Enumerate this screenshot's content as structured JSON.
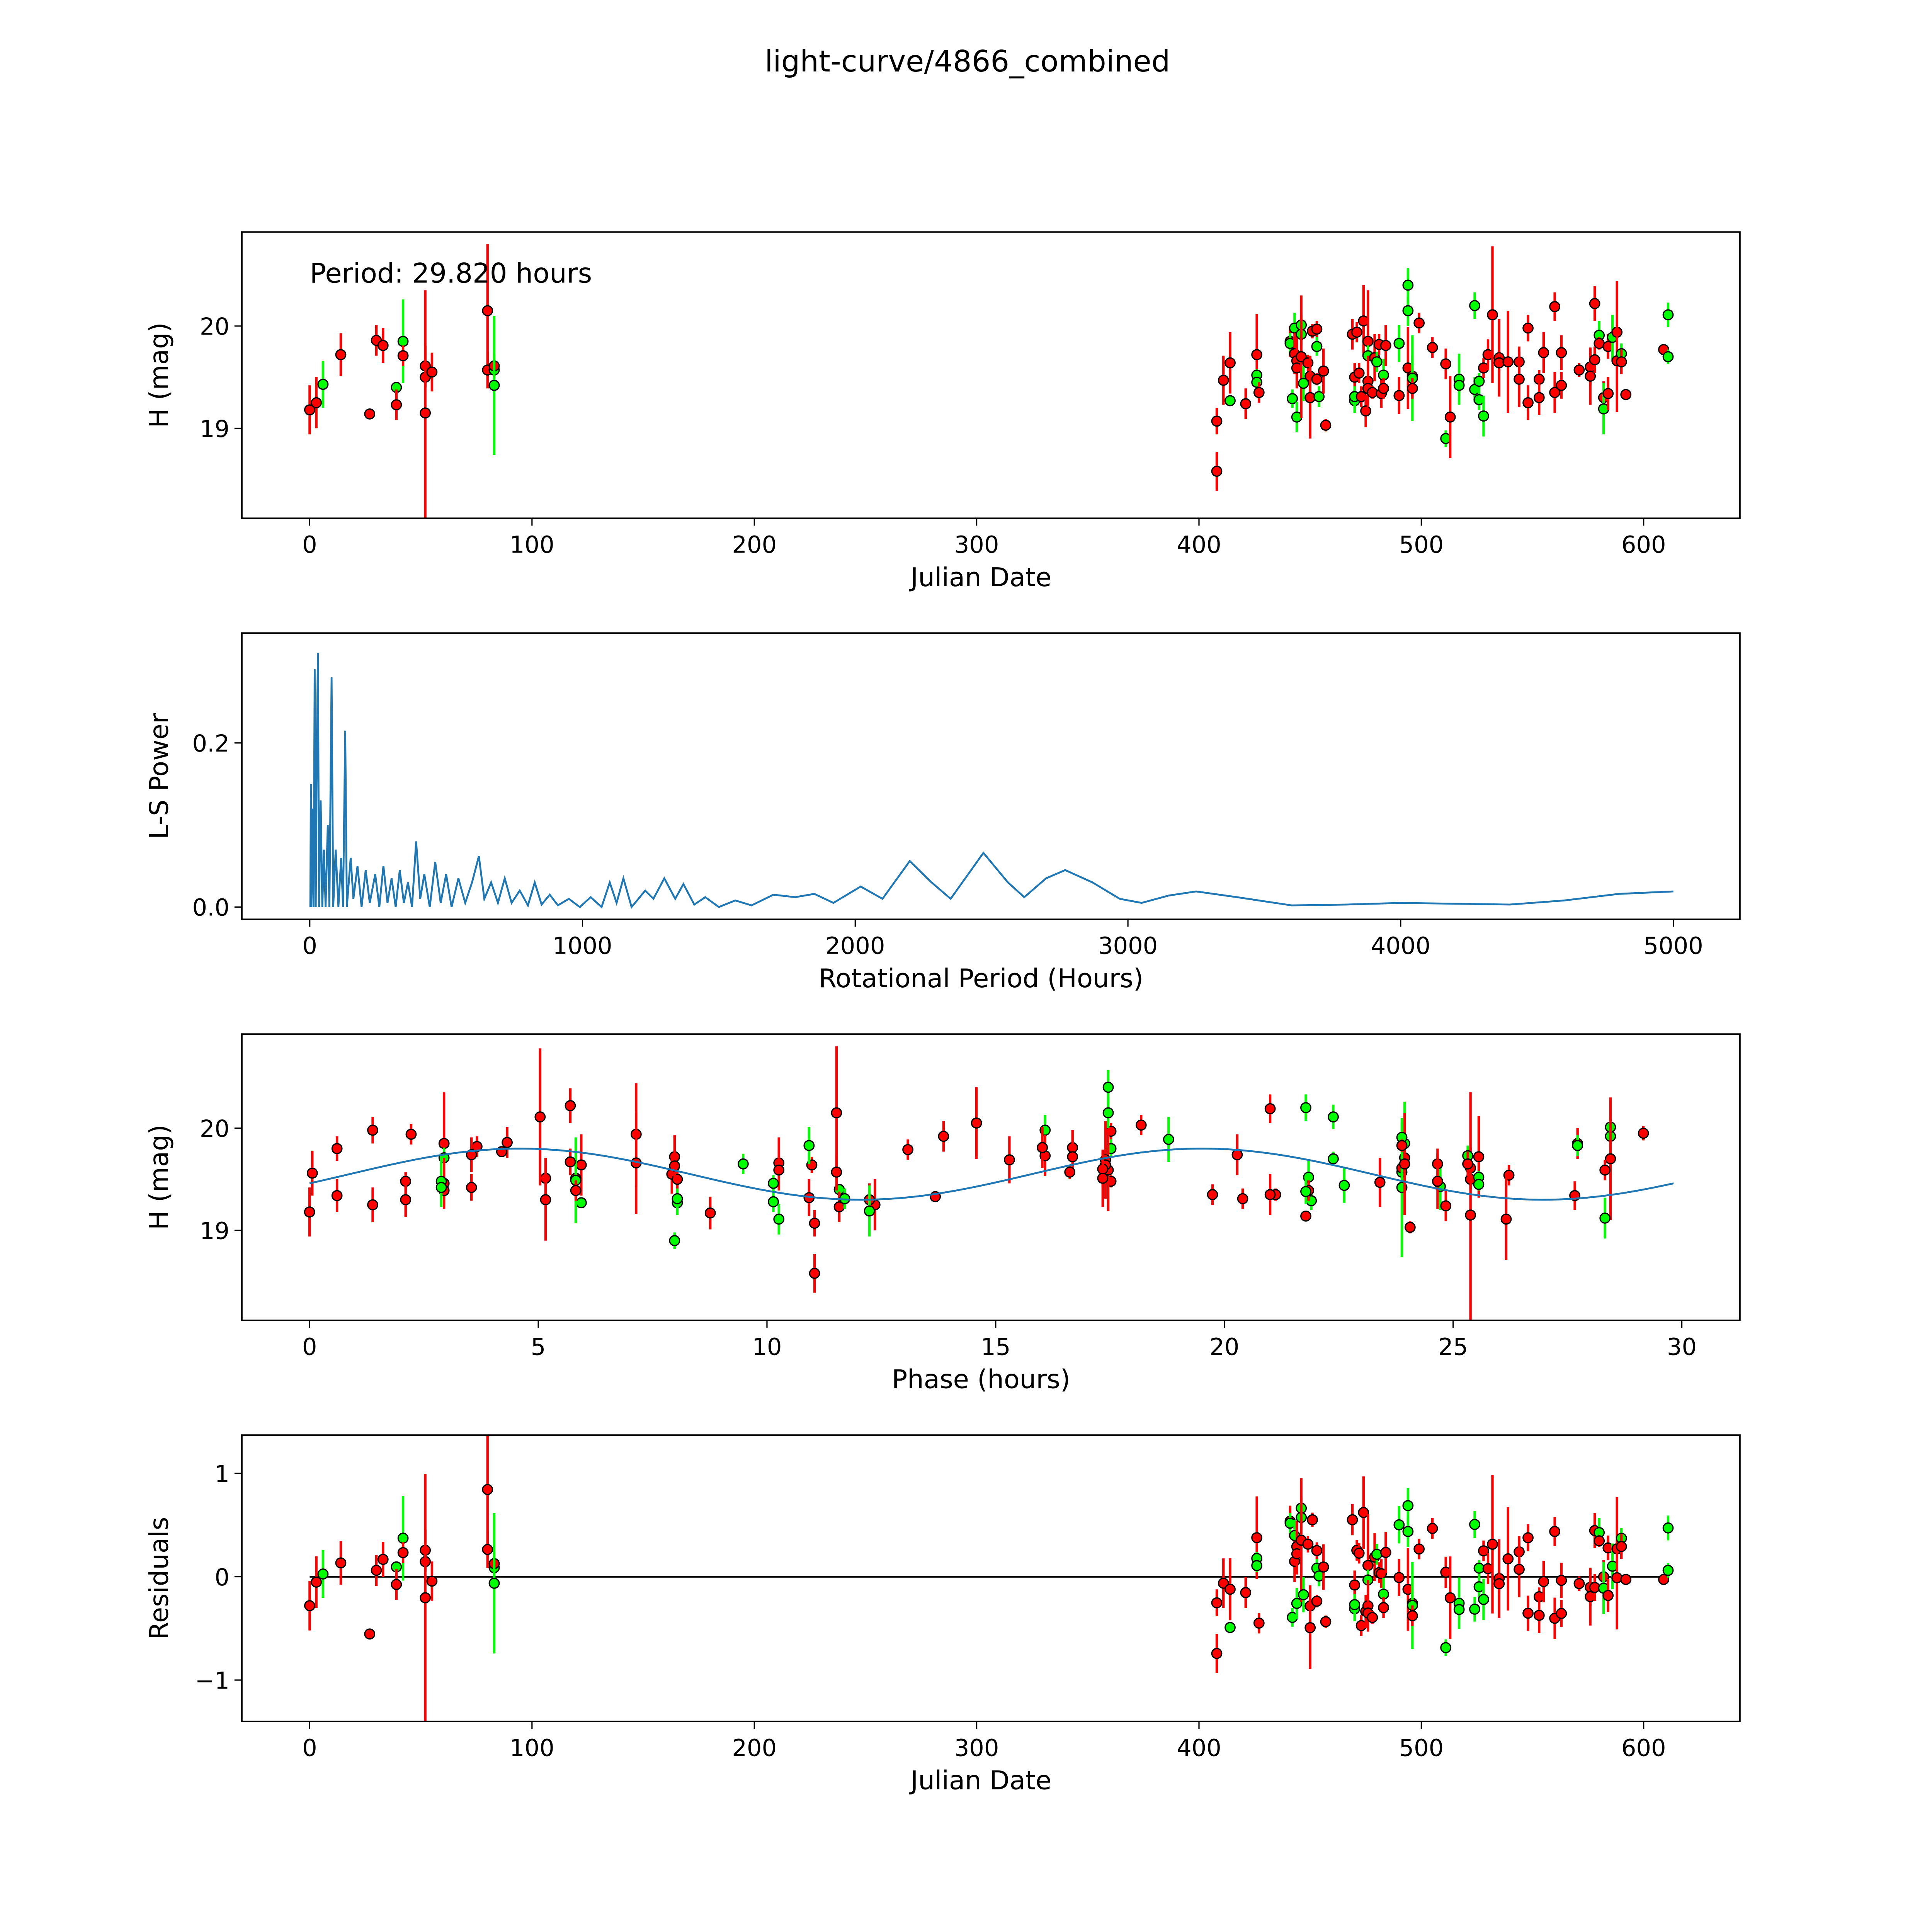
{
  "chart_data": [
    {
      "type": "scatter",
      "title": "light-curve/4866_combined",
      "annotation": "Period: 29.820 hours",
      "xlabel": "Julian Date",
      "ylabel": "H (mag)",
      "xlim": [
        -30.5,
        643.3
      ],
      "ylim": [
        18.12,
        20.92
      ],
      "xticks": [
        0,
        100,
        200,
        300,
        400,
        500,
        600
      ],
      "yticks": [
        19,
        20
      ],
      "colors": {
        "red": "#ff0000",
        "green": "#00ff00",
        "marker_edge": "#000000"
      },
      "points_fields": [
        "jd",
        "mag",
        "err",
        "band"
      ],
      "points": [
        [
          0,
          19.18,
          0.24,
          "r"
        ],
        [
          3,
          19.25,
          0.25,
          "r"
        ],
        [
          6,
          19.43,
          0.23,
          "g"
        ],
        [
          14,
          19.72,
          0.21,
          "r"
        ],
        [
          27,
          19.14,
          0.04,
          "r"
        ],
        [
          30,
          19.86,
          0.15,
          "r"
        ],
        [
          33,
          19.81,
          0.17,
          "r"
        ],
        [
          39,
          19.4,
          0.05,
          "g"
        ],
        [
          39,
          19.23,
          0.15,
          "r"
        ],
        [
          42,
          19.85,
          0.41,
          "g"
        ],
        [
          42,
          19.71,
          0.1,
          "r"
        ],
        [
          52,
          19.61,
          0.2,
          "r"
        ],
        [
          52,
          19.5,
          0.1,
          "r"
        ],
        [
          52,
          19.15,
          1.2,
          "r"
        ],
        [
          55,
          19.55,
          0.19,
          "r"
        ],
        [
          80,
          20.15,
          0.65,
          "r"
        ],
        [
          80,
          19.57,
          0.18,
          "r"
        ],
        [
          83,
          19.57,
          0.1,
          "g"
        ],
        [
          83,
          19.61,
          0.12,
          "r"
        ],
        [
          83,
          19.42,
          0.68,
          "g"
        ],
        [
          408,
          19.07,
          0.13,
          "r"
        ],
        [
          408,
          18.58,
          0.19,
          "r"
        ],
        [
          411,
          19.47,
          0.24,
          "r"
        ],
        [
          414,
          19.64,
          0.3,
          "r"
        ],
        [
          414,
          19.27,
          0.05,
          "g"
        ],
        [
          421,
          19.24,
          0.15,
          "r"
        ],
        [
          426,
          19.72,
          0.4,
          "r"
        ],
        [
          426,
          19.52,
          0.06,
          "g"
        ],
        [
          426,
          19.45,
          0.06,
          "g"
        ],
        [
          427,
          19.35,
          0.1,
          "r"
        ],
        [
          441,
          19.85,
          0.15,
          "r"
        ],
        [
          441,
          19.83,
          0.1,
          "g"
        ],
        [
          442,
          19.29,
          0.09,
          "g"
        ],
        [
          443,
          19.98,
          0.15,
          "g"
        ],
        [
          443,
          19.73,
          0.2,
          "r"
        ],
        [
          444,
          19.66,
          0.25,
          "r"
        ],
        [
          444,
          19.59,
          0.2,
          "r"
        ],
        [
          444,
          19.11,
          0.15,
          "g"
        ],
        [
          446,
          20.01,
          0.1,
          "g"
        ],
        [
          446,
          19.92,
          0.1,
          "g"
        ],
        [
          446,
          19.7,
          0.6,
          "r"
        ],
        [
          447,
          19.44,
          0.17,
          "g"
        ],
        [
          449,
          19.64,
          0.08,
          "r"
        ],
        [
          450,
          19.51,
          0.2,
          "r"
        ],
        [
          450,
          19.3,
          0.4,
          "r"
        ],
        [
          451,
          19.95,
          0.07,
          "r"
        ],
        [
          453,
          19.97,
          0.08,
          "r"
        ],
        [
          453,
          19.8,
          0.09,
          "g"
        ],
        [
          453,
          19.48,
          0.06,
          "r"
        ],
        [
          454,
          19.31,
          0.1,
          "g"
        ],
        [
          456,
          19.56,
          0.22,
          "r"
        ],
        [
          457,
          19.03,
          0.06,
          "r"
        ],
        [
          469,
          19.92,
          0.15,
          "r"
        ],
        [
          471,
          19.94,
          0.1,
          "r"
        ],
        [
          470,
          19.5,
          0.14,
          "r"
        ],
        [
          470,
          19.27,
          0.12,
          "g"
        ],
        [
          470,
          19.31,
          0.1,
          "g"
        ],
        [
          472,
          19.54,
          0.1,
          "r"
        ],
        [
          473,
          19.31,
          0.1,
          "r"
        ],
        [
          474,
          20.05,
          0.35,
          "r"
        ],
        [
          475,
          19.17,
          0.16,
          "r"
        ],
        [
          476,
          19.85,
          0.5,
          "r"
        ],
        [
          476,
          19.71,
          0.1,
          "g"
        ],
        [
          476,
          19.46,
          0.25,
          "r"
        ],
        [
          476,
          19.39,
          0.15,
          "r"
        ],
        [
          478,
          19.35,
          0.06,
          "r"
        ],
        [
          479,
          19.69,
          0.23,
          "r"
        ],
        [
          480,
          19.65,
          0.1,
          "g"
        ],
        [
          481,
          19.82,
          0.1,
          "r"
        ],
        [
          482,
          19.34,
          0.14,
          "r"
        ],
        [
          483,
          19.52,
          0.16,
          "g"
        ],
        [
          483,
          19.39,
          0.1,
          "r"
        ],
        [
          484,
          19.81,
          0.2,
          "r"
        ],
        [
          490,
          19.32,
          0.18,
          "r"
        ],
        [
          490,
          19.83,
          0.18,
          "g"
        ],
        [
          494,
          20.4,
          0.17,
          "g"
        ],
        [
          494,
          20.15,
          0.15,
          "g"
        ],
        [
          494,
          19.59,
          0.4,
          "r"
        ],
        [
          496,
          19.51,
          0.2,
          "r"
        ],
        [
          496,
          19.49,
          0.42,
          "g"
        ],
        [
          496,
          19.39,
          0.1,
          "r"
        ],
        [
          499,
          20.03,
          0.1,
          "r"
        ],
        [
          505,
          19.79,
          0.1,
          "r"
        ],
        [
          511,
          19.63,
          0.15,
          "r"
        ],
        [
          511,
          18.9,
          0.08,
          "g"
        ],
        [
          513,
          19.11,
          0.4,
          "r"
        ],
        [
          517,
          19.48,
          0.25,
          "g"
        ],
        [
          517,
          19.42,
          0.1,
          "g"
        ],
        [
          524,
          20.2,
          0.13,
          "g"
        ],
        [
          524,
          19.38,
          0.12,
          "g"
        ],
        [
          526,
          19.46,
          0.08,
          "g"
        ],
        [
          526,
          19.28,
          0.1,
          "g"
        ],
        [
          528,
          19.12,
          0.2,
          "g"
        ],
        [
          528,
          19.59,
          0.1,
          "r"
        ],
        [
          530,
          19.72,
          0.15,
          "r"
        ],
        [
          532,
          20.11,
          0.67,
          "r"
        ],
        [
          535,
          19.69,
          0.38,
          "r"
        ],
        [
          535,
          19.64,
          0.1,
          "r"
        ],
        [
          539,
          19.65,
          0.5,
          "r"
        ],
        [
          544,
          19.65,
          0.15,
          "r"
        ],
        [
          544,
          19.48,
          0.27,
          "r"
        ],
        [
          548,
          19.98,
          0.13,
          "r"
        ],
        [
          548,
          19.25,
          0.17,
          "r"
        ],
        [
          553,
          19.48,
          0.09,
          "r"
        ],
        [
          553,
          19.3,
          0.17,
          "r"
        ],
        [
          555,
          19.74,
          0.2,
          "r"
        ],
        [
          560,
          20.19,
          0.14,
          "r"
        ],
        [
          560,
          19.35,
          0.2,
          "r"
        ],
        [
          563,
          19.74,
          0.17,
          "r"
        ],
        [
          563,
          19.42,
          0.13,
          "r"
        ],
        [
          571,
          19.57,
          0.07,
          "r"
        ],
        [
          576,
          19.6,
          0.18,
          "r"
        ],
        [
          576,
          19.51,
          0.28,
          "r"
        ],
        [
          578,
          20.22,
          0.17,
          "r"
        ],
        [
          578,
          19.67,
          0.13,
          "r"
        ],
        [
          580,
          19.91,
          0.14,
          "g"
        ],
        [
          580,
          19.83,
          0.06,
          "r"
        ],
        [
          582,
          19.3,
          0.16,
          "r"
        ],
        [
          582,
          19.19,
          0.25,
          "g"
        ],
        [
          584,
          19.8,
          0.12,
          "r"
        ],
        [
          584,
          19.34,
          0.16,
          "r"
        ],
        [
          586,
          19.89,
          0.22,
          "g"
        ],
        [
          588,
          19.94,
          0.5,
          "r"
        ],
        [
          588,
          19.66,
          0.5,
          "r"
        ],
        [
          590,
          19.73,
          0.1,
          "g"
        ],
        [
          590,
          19.65,
          0.12,
          "r"
        ],
        [
          592,
          19.33,
          0.05,
          "r"
        ],
        [
          609,
          19.77,
          0.05,
          "r"
        ],
        [
          611,
          20.11,
          0.12,
          "g"
        ],
        [
          611,
          19.7,
          0.07,
          "g"
        ]
      ]
    },
    {
      "type": "line",
      "xlabel": "Rotational Period (Hours)",
      "ylabel": "L-S Power",
      "xlim": [
        -249,
        5244
      ],
      "ylim": [
        -0.015,
        0.334
      ],
      "xticks": [
        0,
        1000,
        2000,
        3000,
        4000,
        5000
      ],
      "yticks": [
        0.0,
        0.2
      ],
      "ytick_labels": [
        "0.0",
        "0.2"
      ],
      "color": "#1f77b4",
      "series": [
        [
          2,
          0.0
        ],
        [
          4,
          0.15
        ],
        [
          6,
          0.0
        ],
        [
          10,
          0.12
        ],
        [
          14,
          0.0
        ],
        [
          18,
          0.29
        ],
        [
          22,
          0.0
        ],
        [
          26,
          0.2
        ],
        [
          30,
          0.31
        ],
        [
          34,
          0.0
        ],
        [
          40,
          0.13
        ],
        [
          46,
          0.0
        ],
        [
          52,
          0.07
        ],
        [
          58,
          0.0
        ],
        [
          66,
          0.1
        ],
        [
          72,
          0.0
        ],
        [
          80,
          0.28
        ],
        [
          86,
          0.0
        ],
        [
          95,
          0.07
        ],
        [
          105,
          0.0
        ],
        [
          115,
          0.06
        ],
        [
          122,
          0.0
        ],
        [
          130,
          0.215
        ],
        [
          136,
          0.0
        ],
        [
          150,
          0.06
        ],
        [
          160,
          0.01
        ],
        [
          175,
          0.05
        ],
        [
          190,
          0.0
        ],
        [
          205,
          0.045
        ],
        [
          220,
          0.005
        ],
        [
          240,
          0.04
        ],
        [
          255,
          0.0
        ],
        [
          270,
          0.05
        ],
        [
          285,
          0.005
        ],
        [
          300,
          0.035
        ],
        [
          315,
          0.0
        ],
        [
          330,
          0.045
        ],
        [
          345,
          0.005
        ],
        [
          360,
          0.03
        ],
        [
          375,
          0.0
        ],
        [
          390,
          0.08
        ],
        [
          405,
          0.01
        ],
        [
          420,
          0.04
        ],
        [
          440,
          0.0
        ],
        [
          460,
          0.055
        ],
        [
          480,
          0.005
        ],
        [
          500,
          0.04
        ],
        [
          520,
          0.0
        ],
        [
          545,
          0.035
        ],
        [
          570,
          0.005
        ],
        [
          595,
          0.03
        ],
        [
          620,
          0.062
        ],
        [
          640,
          0.01
        ],
        [
          665,
          0.03
        ],
        [
          690,
          0.005
        ],
        [
          715,
          0.035
        ],
        [
          740,
          0.005
        ],
        [
          770,
          0.02
        ],
        [
          800,
          0.002
        ],
        [
          825,
          0.03
        ],
        [
          850,
          0.003
        ],
        [
          880,
          0.015
        ],
        [
          910,
          0.002
        ],
        [
          950,
          0.01
        ],
        [
          990,
          0.0
        ],
        [
          1030,
          0.012
        ],
        [
          1070,
          0.0
        ],
        [
          1100,
          0.03
        ],
        [
          1125,
          0.005
        ],
        [
          1150,
          0.035
        ],
        [
          1180,
          0.0
        ],
        [
          1230,
          0.02
        ],
        [
          1260,
          0.01
        ],
        [
          1300,
          0.035
        ],
        [
          1340,
          0.01
        ],
        [
          1370,
          0.028
        ],
        [
          1410,
          0.003
        ],
        [
          1450,
          0.012
        ],
        [
          1500,
          0.0
        ],
        [
          1560,
          0.008
        ],
        [
          1620,
          0.002
        ],
        [
          1700,
          0.015
        ],
        [
          1780,
          0.012
        ],
        [
          1850,
          0.016
        ],
        [
          1920,
          0.005
        ],
        [
          2020,
          0.025
        ],
        [
          2100,
          0.01
        ],
        [
          2200,
          0.056
        ],
        [
          2280,
          0.03
        ],
        [
          2350,
          0.01
        ],
        [
          2470,
          0.066
        ],
        [
          2560,
          0.03
        ],
        [
          2620,
          0.012
        ],
        [
          2700,
          0.035
        ],
        [
          2770,
          0.045
        ],
        [
          2870,
          0.03
        ],
        [
          2970,
          0.01
        ],
        [
          3050,
          0.005
        ],
        [
          3150,
          0.014
        ],
        [
          3250,
          0.019
        ],
        [
          3400,
          0.012
        ],
        [
          3600,
          0.002
        ],
        [
          3800,
          0.003
        ],
        [
          4000,
          0.005
        ],
        [
          4200,
          0.004
        ],
        [
          4400,
          0.003
        ],
        [
          4600,
          0.008
        ],
        [
          4800,
          0.016
        ],
        [
          5000,
          0.019
        ]
      ]
    },
    {
      "type": "scatter",
      "xlabel": "Phase (hours)",
      "ylabel": "H (mag)",
      "xlim": [
        -1.48,
        31.27
      ],
      "ylim": [
        18.12,
        20.92
      ],
      "xticks": [
        0,
        5,
        10,
        15,
        20,
        25,
        30
      ],
      "yticks": [
        19,
        20
      ],
      "period_hours": 29.82,
      "model": {
        "mean": 19.55,
        "amplitude": 0.25,
        "peak_phase": 4.6,
        "harmonic_period": 14.91,
        "color": "#1f77b4"
      }
    },
    {
      "type": "scatter",
      "xlabel": "Julian Date",
      "ylabel": "Residuals",
      "xlim": [
        -30.5,
        643.3
      ],
      "ylim": [
        -1.4,
        1.37
      ],
      "xticks": [
        0,
        100,
        200,
        300,
        400,
        500,
        600
      ],
      "yticks": [
        -1,
        0,
        1
      ],
      "ytick_labels": [
        "−1",
        "0",
        "1"
      ],
      "zero_line_color": "#000000"
    }
  ]
}
